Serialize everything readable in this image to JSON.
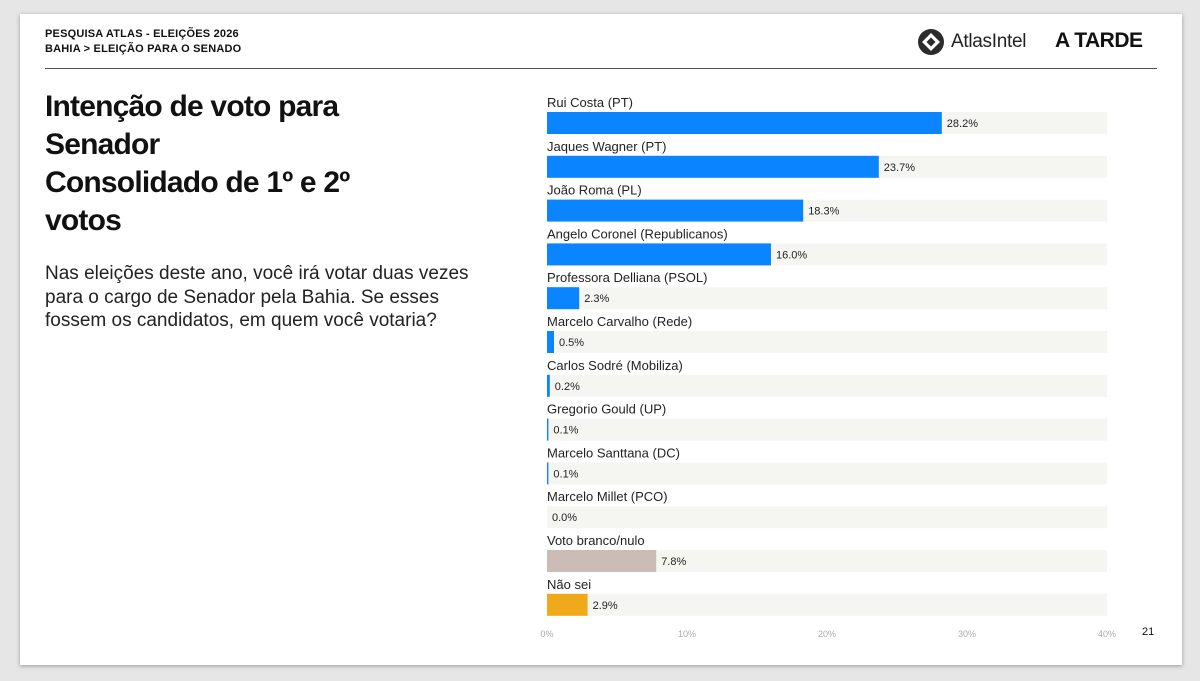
{
  "header": {
    "survey": "PESQUISA ATLAS - ELEIÇÕES 2026",
    "breadcrumb": "BAHIA > ELEIÇÃO PARA O SENADO",
    "logo_atlas": "AtlasIntel",
    "logo_tarde": "A TARDE"
  },
  "title_lines": [
    "Intenção de voto para",
    "Senador",
    "Consolidado de 1º e 2º",
    "votos"
  ],
  "question": "Nas eleições deste ano, você irá votar duas vezes para o cargo de Senador pela Bahia. Se esses fossem os candidatos, em quem você votaria?",
  "page_number": "21",
  "colors": {
    "candidate": "#0a84ff",
    "blank_null": "#cbbdb6",
    "dont_know": "#f0a91a",
    "track": "#f5f5f2"
  },
  "chart_data": {
    "type": "bar",
    "orientation": "horizontal",
    "categories": [
      "Rui Costa (PT)",
      "Jaques Wagner (PT)",
      "João Roma (PL)",
      "Angelo Coronel (Republicanos)",
      "Professora Delliana (PSOL)",
      "Marcelo Carvalho (Rede)",
      "Carlos Sodré (Mobiliza)",
      "Gregorio Gould (UP)",
      "Marcelo Santtana (DC)",
      "Marcelo Millet (PCO)",
      "Voto branco/nulo",
      "Não sei"
    ],
    "values": [
      28.2,
      23.7,
      18.3,
      16.0,
      2.3,
      0.5,
      0.2,
      0.1,
      0.1,
      0.0,
      7.8,
      2.9
    ],
    "value_labels": [
      "28.2%",
      "23.7%",
      "18.3%",
      "16.0%",
      "2.3%",
      "0.5%",
      "0.2%",
      "0.1%",
      "0.1%",
      "0.0%",
      "7.8%",
      "2.9%"
    ],
    "bar_colors": [
      "#0a84ff",
      "#0a84ff",
      "#0a84ff",
      "#0a84ff",
      "#0a84ff",
      "#0a84ff",
      "#0a84ff",
      "#0a84ff",
      "#0a84ff",
      "#0a84ff",
      "#cbbdb6",
      "#f0a91a"
    ],
    "xlim": [
      0,
      40
    ],
    "xticks": [
      0,
      10,
      20,
      30,
      40
    ],
    "xtick_labels": [
      "0%",
      "10%",
      "20%",
      "30%",
      "40%"
    ],
    "grid": false,
    "legend": "none"
  }
}
